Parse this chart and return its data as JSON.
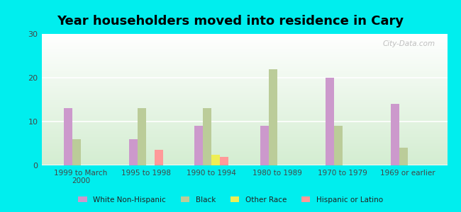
{
  "title": "Year householders moved into residence in Cary",
  "categories": [
    "1999 to March\n2000",
    "1995 to 1998",
    "1990 to 1994",
    "1980 to 1989",
    "1970 to 1979",
    "1969 or earlier"
  ],
  "series": {
    "White Non-Hispanic": [
      13,
      6,
      9,
      9,
      20,
      14
    ],
    "Black": [
      6,
      13,
      13,
      22,
      9,
      4
    ],
    "Other Race": [
      0,
      0,
      2.5,
      0,
      0,
      0
    ],
    "Hispanic or Latino": [
      0,
      3.5,
      2,
      0,
      0,
      0
    ]
  },
  "colors": {
    "White Non-Hispanic": "#cc99cc",
    "Black": "#bbcc99",
    "Other Race": "#eeee55",
    "Hispanic or Latino": "#ff9999"
  },
  "ylim": [
    0,
    30
  ],
  "yticks": [
    0,
    10,
    20,
    30
  ],
  "background_color": "#00eeee",
  "watermark": "City-Data.com",
  "bar_width": 0.13,
  "title_fontsize": 13
}
